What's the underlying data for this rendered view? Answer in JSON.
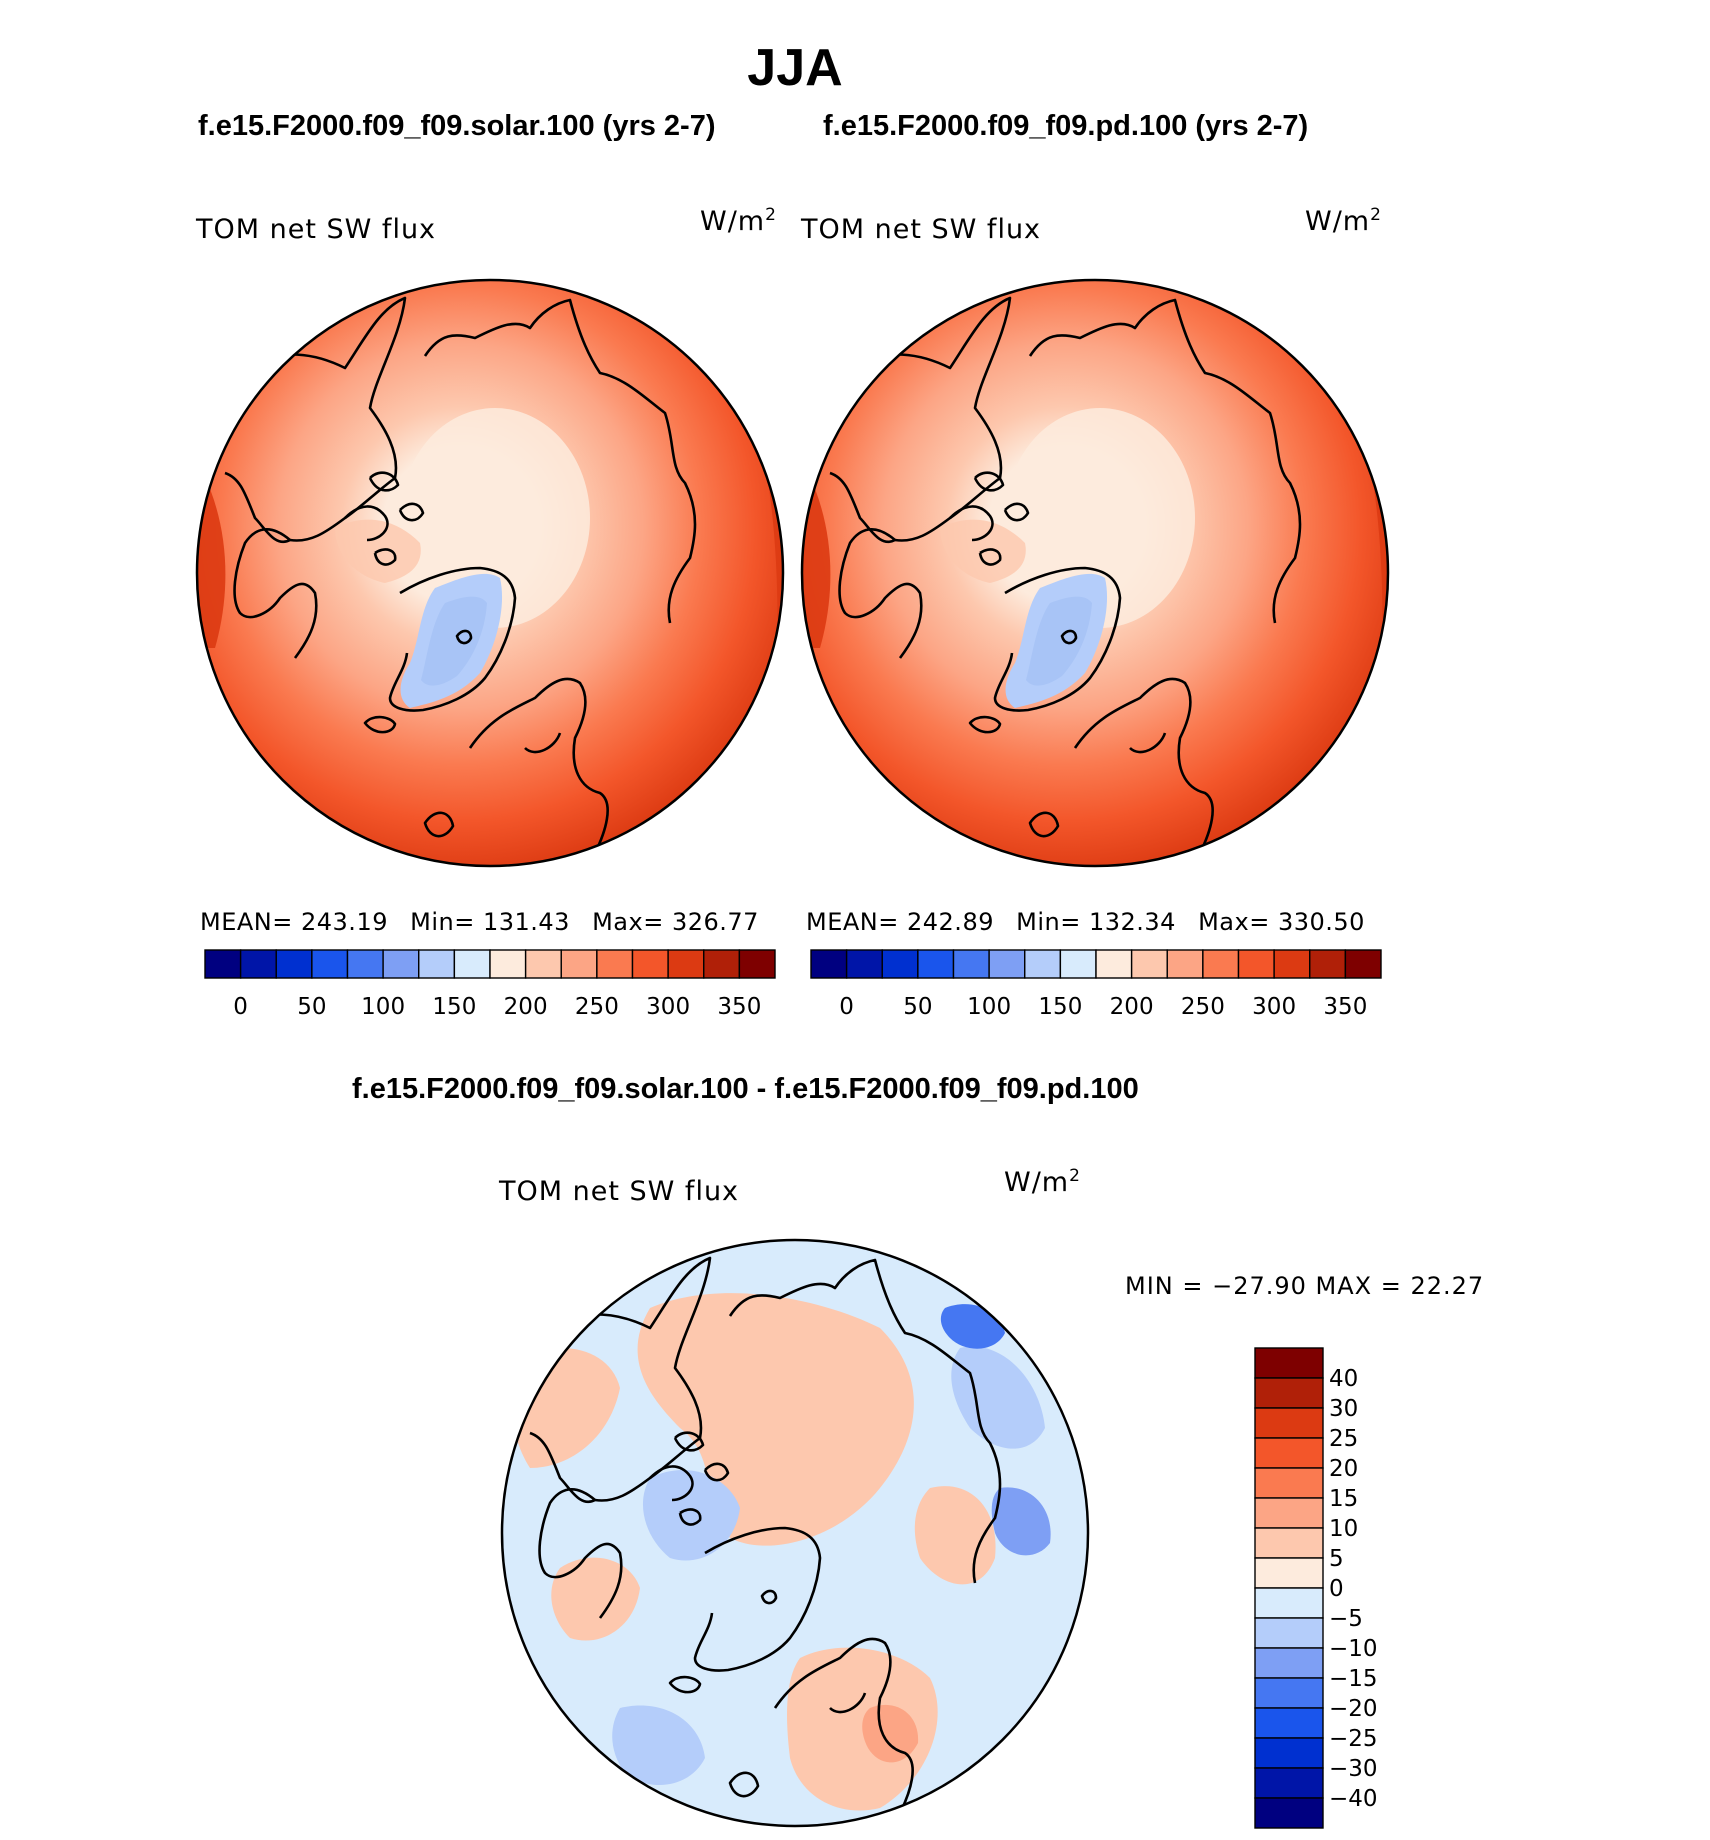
{
  "figure": {
    "season_title": "JJA",
    "diff_title": "f.e15.F2000.f09_f09.solar.100 - f.e15.F2000.f09_f09.pd.100"
  },
  "panels": [
    {
      "case_title": "f.e15.F2000.f09_f09.solar.100 (yrs 2-7)",
      "variable": "TOM net SW flux",
      "units_base": "W/m",
      "units_exp": "2",
      "mean_label": "MEAN=",
      "mean": "243.19",
      "min_label": "Min=",
      "min": "131.43",
      "max_label": "Max=",
      "max": "326.77"
    },
    {
      "case_title": "f.e15.F2000.f09_f09.pd.100 (yrs 2-7)",
      "variable": "TOM net SW flux",
      "units_base": "W/m",
      "units_exp": "2",
      "mean_label": "MEAN=",
      "mean": "242.89",
      "min_label": "Min=",
      "min": "132.34",
      "max_label": "Max=",
      "max": "330.50"
    }
  ],
  "diff_panel": {
    "variable": "TOM net SW flux",
    "units_base": "W/m",
    "units_exp": "2",
    "minmax_text": "MIN = −27.90 MAX =   22.27"
  },
  "colorbar_abs": {
    "colors": [
      "#000080",
      "#0015a8",
      "#0030d0",
      "#1a55ec",
      "#4577f2",
      "#7e9ff4",
      "#b4cdfa",
      "#d8ebfc",
      "#fdebdd",
      "#fdc8ae",
      "#fca585",
      "#fa7a50",
      "#f3562a",
      "#dc3a12",
      "#b02008",
      "#7e0000"
    ],
    "labels": [
      "0",
      "50",
      "100",
      "150",
      "200",
      "250",
      "300",
      "350"
    ]
  },
  "colorbar_diff": {
    "colors_top_to_bottom": [
      "#7e0000",
      "#b02008",
      "#dc3a12",
      "#f3562a",
      "#fa7a50",
      "#fca585",
      "#fdc8ae",
      "#fdebdd",
      "#d8ebfc",
      "#b4cdfa",
      "#7e9ff4",
      "#4577f2",
      "#1a55ec",
      "#0030d0",
      "#0015a8",
      "#000080"
    ],
    "labels_top_to_bottom": [
      "40",
      "30",
      "25",
      "20",
      "15",
      "10",
      "5",
      "0",
      "−5",
      "−10",
      "−15",
      "−20",
      "−25",
      "−30",
      "−40"
    ]
  },
  "colors": {
    "ocean_base": "#f3562a",
    "ocean_outer": "#dc3a12",
    "mid_band": "#fa7a50",
    "light_band": "#fca585",
    "polar_light": "#fdc8ae",
    "polar_core": "#fdebdd",
    "ice_sheet": "#b4cdfa",
    "ice_core": "#a8c4f6",
    "diff_base": "#d8ebfc",
    "diff_warm": "#fdc8ae",
    "diff_warm_strong": "#fca585",
    "diff_cool": "#b4cdfa",
    "diff_cool_strong": "#7e9ff4",
    "diff_blue_strong": "#4577f2",
    "diff_red_strong": "#fa7a50",
    "coast": "#000000"
  }
}
